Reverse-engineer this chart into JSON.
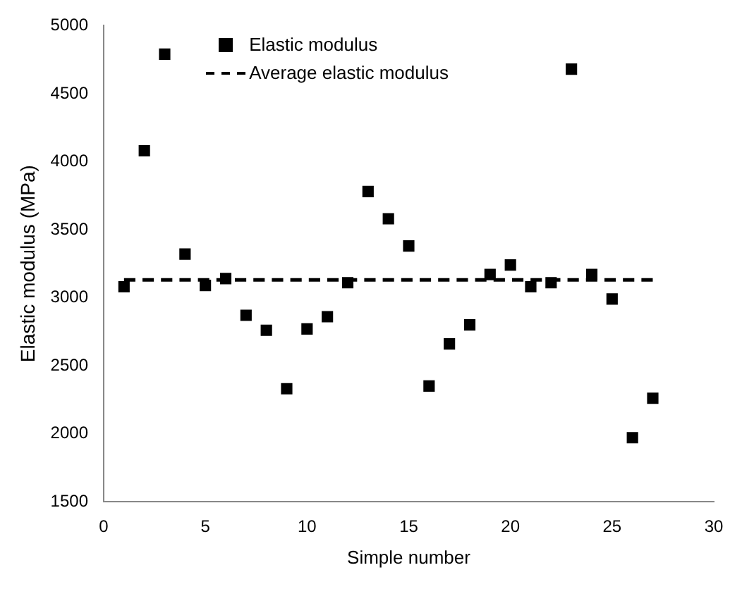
{
  "chart_data": {
    "type": "scatter",
    "xlabel": "Simple number",
    "ylabel": "Elastic modulus (MPa)",
    "xlim": [
      0,
      30
    ],
    "xticks": [
      0,
      5,
      10,
      15,
      20,
      25,
      30
    ],
    "ylim": [
      1500,
      5000
    ],
    "yticks": [
      1500,
      2000,
      2500,
      3000,
      3500,
      4000,
      4500,
      5000
    ],
    "grid": false,
    "legend": "top left",
    "marker": "square",
    "series": [
      {
        "name": "Elastic modulus",
        "color": "#000000",
        "x": [
          1,
          2,
          3,
          4,
          5,
          6,
          7,
          8,
          9,
          10,
          11,
          12,
          13,
          14,
          15,
          16,
          17,
          18,
          19,
          20,
          21,
          22,
          23,
          24,
          25,
          26,
          27
        ],
        "values": [
          3080,
          4080,
          4790,
          3320,
          3090,
          3140,
          2870,
          2760,
          2330,
          2770,
          2860,
          3110,
          3780,
          3580,
          3380,
          2350,
          2660,
          2800,
          3170,
          3240,
          3080,
          3110,
          4680,
          3170,
          2990,
          1970,
          2260
        ]
      },
      {
        "name": "Average elastic modulus",
        "type": "line",
        "marker": "none",
        "line_style": "dashed",
        "color": "#000000",
        "x": [
          1,
          27
        ],
        "values": [
          3130,
          3130
        ]
      }
    ]
  }
}
